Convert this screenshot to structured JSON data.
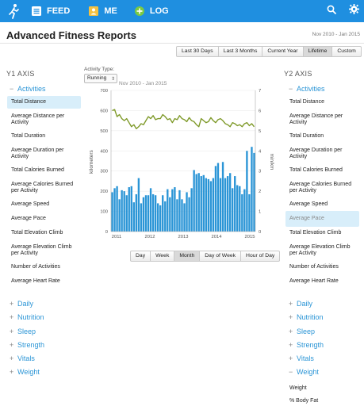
{
  "nav": {
    "feed": "FEED",
    "me": "ME",
    "log": "LOG"
  },
  "header": {
    "title": "Advanced Fitness Reports",
    "date_range": "Nov 2010 - Jan 2015"
  },
  "period_buttons": [
    "Last 30 Days",
    "Last 3 Months",
    "Current Year",
    "Lifetime",
    "Custom"
  ],
  "period_active": "Lifetime",
  "left": {
    "title": "Y1 AXIS",
    "open_section": "Activities",
    "items": [
      "Total Distance",
      "Average Distance per Activity",
      "Total Duration",
      "Average Duration per Activity",
      "Total Calories Burned",
      "Average Calories Burned per Activity",
      "Average Speed",
      "Average Pace",
      "Total Elevation Climb",
      "Average Elevation Climb per Activity",
      "Number of Activities",
      "Average Heart Rate"
    ],
    "selected": "Total Distance",
    "collapsed": [
      "Daily",
      "Nutrition",
      "Sleep",
      "Strength",
      "Vitals",
      "Weight"
    ]
  },
  "right": {
    "title": "Y2 AXIS",
    "open_section": "Activities",
    "items": [
      "Total Distance",
      "Average Distance per Activity",
      "Total Duration",
      "Average Duration per Activity",
      "Total Calories Burned",
      "Average Calories Burned per Activity",
      "Average Speed",
      "Average Pace",
      "Total Elevation Climb",
      "Average Elevation Climb per Activity",
      "Number of Activities",
      "Average Heart Rate"
    ],
    "selected": "Average Pace",
    "collapsed": [
      "Daily",
      "Nutrition",
      "Sleep",
      "Strength",
      "Vitals"
    ],
    "weight_section": "Weight",
    "weight_items": [
      "Weight",
      "% Body Fat"
    ]
  },
  "activity_type": {
    "label": "Activity Type:",
    "value": "Running"
  },
  "chart_sub": "Nov 2010 - Jan 2015",
  "granularity_buttons": [
    "Day",
    "Week",
    "Month",
    "Day of Week",
    "Hour of Day"
  ],
  "granularity_active": "Month",
  "colors": {
    "nav_bg": "#1f8fe0",
    "accent": "#2b95d6",
    "bar": "#2b95d6",
    "line": "#7f9a2a",
    "selected_bg": "#d8eefa"
  },
  "icons": {
    "logo": "runner-icon",
    "feed": "list-icon",
    "me": "person-icon",
    "log": "plus-icon",
    "search": "search-icon",
    "settings": "gear-icon"
  },
  "chart_data": {
    "type": "bar",
    "x_tick_labels": [
      "2011",
      "2012",
      "2013",
      "2014",
      "2015"
    ],
    "ylabel": "kilometers",
    "y2label": "min/km",
    "ylim": [
      0,
      700
    ],
    "y_ticks": [
      0,
      100,
      200,
      300,
      400,
      500,
      600,
      700
    ],
    "y2lim": [
      0,
      7
    ],
    "y2_ticks": [
      0,
      1,
      2,
      3,
      4,
      5,
      6,
      7
    ],
    "series": [
      {
        "type": "bar",
        "axis": "y1",
        "values": [
          195,
          215,
          225,
          160,
          205,
          200,
          180,
          220,
          225,
          145,
          185,
          265,
          140,
          170,
          180,
          180,
          215,
          185,
          180,
          140,
          130,
          180,
          150,
          210,
          170,
          210,
          220,
          160,
          205,
          160,
          140,
          195,
          170,
          215,
          305,
          285,
          290,
          275,
          280,
          265,
          260,
          250,
          265,
          325,
          340,
          265,
          345,
          265,
          275,
          290,
          215,
          275,
          230,
          225,
          185,
          210,
          400,
          185,
          420,
          390
        ]
      },
      {
        "type": "line",
        "axis": "y2",
        "values": [
          6.0,
          6.05,
          5.7,
          5.8,
          5.6,
          5.5,
          5.6,
          5.4,
          5.2,
          5.3,
          5.1,
          5.2,
          5.35,
          5.3,
          5.5,
          5.7,
          5.6,
          5.75,
          5.55,
          5.6,
          5.6,
          5.8,
          5.7,
          5.55,
          5.6,
          5.4,
          5.6,
          5.55,
          5.75,
          5.6,
          5.55,
          5.45,
          5.65,
          5.5,
          5.45,
          5.3,
          5.2,
          5.6,
          5.5,
          5.4,
          5.45,
          5.65,
          5.5,
          5.4,
          5.55,
          5.6,
          5.5,
          5.35,
          5.3,
          5.2,
          5.4,
          5.35,
          5.25,
          5.3,
          5.2,
          5.35,
          5.4,
          5.25,
          5.35,
          5.2
        ]
      }
    ]
  }
}
